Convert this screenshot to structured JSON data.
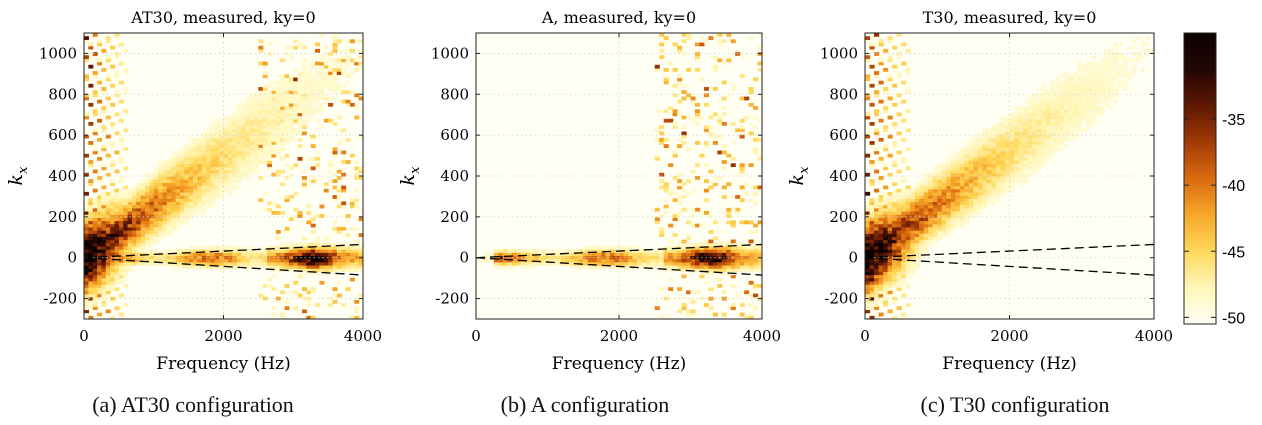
{
  "colors": {
    "colormap": [
      "#fffff4",
      "#fff6b8",
      "#ffd85a",
      "#f7a72a",
      "#d96a10",
      "#a33a06",
      "#5e1703",
      "#230704",
      "#0a0202"
    ],
    "dashed_line": "#000000",
    "grid": "#d0d0d0"
  },
  "colorbar": {
    "ticks": [
      "-35",
      "-40",
      "-45",
      "-50"
    ],
    "tick_values": [
      -35,
      -40,
      -45,
      -50
    ],
    "range": [
      -50.5,
      -28.5
    ]
  },
  "chart_data": [
    {
      "type": "heatmap",
      "title": "AT30, measured, ky=0",
      "xlabel": "Frequency (Hz)",
      "ylabel": "k",
      "ylabel_sub": "x",
      "xlim": [
        0,
        4000
      ],
      "ylim": [
        -300,
        1100
      ],
      "xticks": [
        0,
        2000,
        4000
      ],
      "yticks": [
        -200,
        0,
        200,
        400,
        600,
        800,
        1000
      ],
      "grid": true,
      "dashed_lines": [
        {
          "x": [
            0,
            4000
          ],
          "y": [
            0,
            65
          ]
        },
        {
          "x": [
            0,
            4000
          ],
          "y": [
            0,
            -85
          ]
        }
      ],
      "features": {
        "diagonal_band": true,
        "left_edge_stripes": true,
        "horizontal_band": true,
        "diagonal_slope_per_hz": 0.25
      }
    },
    {
      "type": "heatmap",
      "title": "A, measured, ky=0",
      "xlabel": "Frequency (Hz)",
      "ylabel": "k",
      "ylabel_sub": "x",
      "xlim": [
        0,
        4000
      ],
      "ylim": [
        -300,
        1100
      ],
      "xticks": [
        0,
        2000,
        4000
      ],
      "yticks": [
        -200,
        0,
        200,
        400,
        600,
        800,
        1000
      ],
      "grid": true,
      "dashed_lines": [
        {
          "x": [
            0,
            4000
          ],
          "y": [
            0,
            65
          ]
        },
        {
          "x": [
            0,
            4000
          ],
          "y": [
            0,
            -85
          ]
        }
      ],
      "features": {
        "diagonal_band": false,
        "left_edge_stripes": false,
        "horizontal_band": true
      }
    },
    {
      "type": "heatmap",
      "title": "T30, measured, ky=0",
      "xlabel": "Frequency (Hz)",
      "ylabel": "k",
      "ylabel_sub": "x",
      "xlim": [
        0,
        4000
      ],
      "ylim": [
        -300,
        1100
      ],
      "xticks": [
        0,
        2000,
        4000
      ],
      "yticks": [
        -200,
        0,
        200,
        400,
        600,
        800,
        1000
      ],
      "grid": true,
      "dashed_lines": [
        {
          "x": [
            0,
            4000
          ],
          "y": [
            0,
            65
          ]
        },
        {
          "x": [
            0,
            4000
          ],
          "y": [
            0,
            -85
          ]
        }
      ],
      "features": {
        "diagonal_band": true,
        "left_edge_stripes": true,
        "horizontal_band": false,
        "diagonal_slope_per_hz": 0.26
      }
    }
  ],
  "captions": [
    "(a) AT30 configuration",
    "(b) A configuration",
    "(c) T30 configuration"
  ]
}
